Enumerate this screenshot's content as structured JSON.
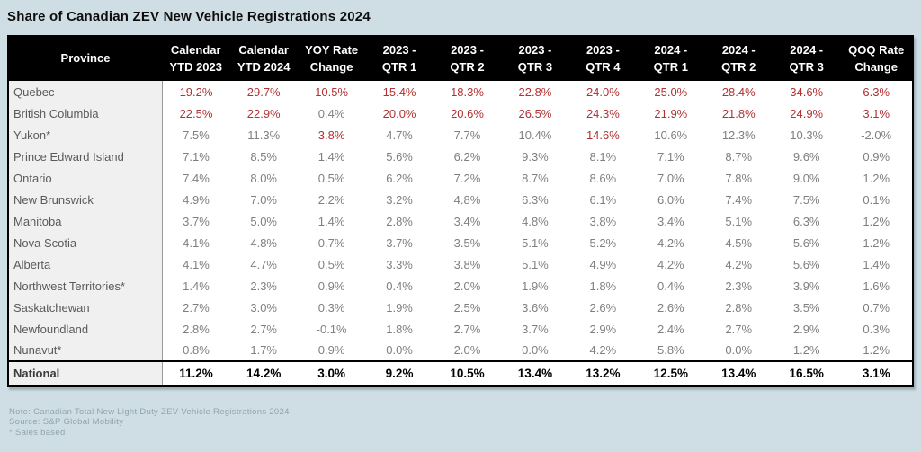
{
  "title": "Share of Canadian ZEV New Vehicle Registrations 2024",
  "colors": {
    "page_bg": "#cfdee4",
    "header_bg": "#000000",
    "header_text": "#ffffff",
    "province_col_bg": "#f0f0f0",
    "province_text": "#5a5a5a",
    "value_gray": "#7f7f7f",
    "highlight_red": "#b03232",
    "national_text": "#000000",
    "note_color": "#90a4ad",
    "border_black": "#000000"
  },
  "notes": [
    "Note: Canadian Total New Light Duty ZEV Vehicle Registrations 2024",
    "Source: S&P Global Mobility",
    "* Sales based"
  ],
  "chart_data": {
    "type": "table",
    "title": "Share of Canadian ZEV New Vehicle Registrations 2024",
    "columns": [
      "Province",
      "Calendar\nYTD 2023",
      "Calendar\nYTD 2024",
      "YOY Rate\nChange",
      "2023 -\nQTR 1",
      "2023 -\nQTR 2",
      "2023 -\nQTR 3",
      "2023 -\nQTR 4",
      "2024 -\nQTR 1",
      "2024 -\nQTR 2",
      "2024 -\nQTR 3",
      "QOQ Rate\nChange"
    ],
    "rows": [
      {
        "province": "Quebec",
        "values": [
          "19.2%",
          "29.7%",
          "10.5%",
          "15.4%",
          "18.3%",
          "22.8%",
          "24.0%",
          "25.0%",
          "28.4%",
          "34.6%",
          "6.3%"
        ],
        "red_flags": [
          1,
          1,
          1,
          1,
          1,
          1,
          1,
          1,
          1,
          1,
          1
        ]
      },
      {
        "province": "British Columbia",
        "values": [
          "22.5%",
          "22.9%",
          "0.4%",
          "20.0%",
          "20.6%",
          "26.5%",
          "24.3%",
          "21.9%",
          "21.8%",
          "24.9%",
          "3.1%"
        ],
        "red_flags": [
          1,
          1,
          0,
          1,
          1,
          1,
          1,
          1,
          1,
          1,
          1
        ]
      },
      {
        "province": "Yukon*",
        "values": [
          "7.5%",
          "11.3%",
          "3.8%",
          "4.7%",
          "7.7%",
          "10.4%",
          "14.6%",
          "10.6%",
          "12.3%",
          "10.3%",
          "-2.0%"
        ],
        "red_flags": [
          0,
          0,
          1,
          0,
          0,
          0,
          1,
          0,
          0,
          0,
          0
        ]
      },
      {
        "province": "Prince Edward Island",
        "values": [
          "7.1%",
          "8.5%",
          "1.4%",
          "5.6%",
          "6.2%",
          "9.3%",
          "8.1%",
          "7.1%",
          "8.7%",
          "9.6%",
          "0.9%"
        ],
        "red_flags": [
          0,
          0,
          0,
          0,
          0,
          0,
          0,
          0,
          0,
          0,
          0
        ]
      },
      {
        "province": "Ontario",
        "values": [
          "7.4%",
          "8.0%",
          "0.5%",
          "6.2%",
          "7.2%",
          "8.7%",
          "8.6%",
          "7.0%",
          "7.8%",
          "9.0%",
          "1.2%"
        ],
        "red_flags": [
          0,
          0,
          0,
          0,
          0,
          0,
          0,
          0,
          0,
          0,
          0
        ]
      },
      {
        "province": "New Brunswick",
        "values": [
          "4.9%",
          "7.0%",
          "2.2%",
          "3.2%",
          "4.8%",
          "6.3%",
          "6.1%",
          "6.0%",
          "7.4%",
          "7.5%",
          "0.1%"
        ],
        "red_flags": [
          0,
          0,
          0,
          0,
          0,
          0,
          0,
          0,
          0,
          0,
          0
        ]
      },
      {
        "province": "Manitoba",
        "values": [
          "3.7%",
          "5.0%",
          "1.4%",
          "2.8%",
          "3.4%",
          "4.8%",
          "3.8%",
          "3.4%",
          "5.1%",
          "6.3%",
          "1.2%"
        ],
        "red_flags": [
          0,
          0,
          0,
          0,
          0,
          0,
          0,
          0,
          0,
          0,
          0
        ]
      },
      {
        "province": "Nova Scotia",
        "values": [
          "4.1%",
          "4.8%",
          "0.7%",
          "3.7%",
          "3.5%",
          "5.1%",
          "5.2%",
          "4.2%",
          "4.5%",
          "5.6%",
          "1.2%"
        ],
        "red_flags": [
          0,
          0,
          0,
          0,
          0,
          0,
          0,
          0,
          0,
          0,
          0
        ]
      },
      {
        "province": "Alberta",
        "values": [
          "4.1%",
          "4.7%",
          "0.5%",
          "3.3%",
          "3.8%",
          "5.1%",
          "4.9%",
          "4.2%",
          "4.2%",
          "5.6%",
          "1.4%"
        ],
        "red_flags": [
          0,
          0,
          0,
          0,
          0,
          0,
          0,
          0,
          0,
          0,
          0
        ]
      },
      {
        "province": "Northwest Territories*",
        "values": [
          "1.4%",
          "2.3%",
          "0.9%",
          "0.4%",
          "2.0%",
          "1.9%",
          "1.8%",
          "0.4%",
          "2.3%",
          "3.9%",
          "1.6%"
        ],
        "red_flags": [
          0,
          0,
          0,
          0,
          0,
          0,
          0,
          0,
          0,
          0,
          0
        ]
      },
      {
        "province": "Saskatchewan",
        "values": [
          "2.7%",
          "3.0%",
          "0.3%",
          "1.9%",
          "2.5%",
          "3.6%",
          "2.6%",
          "2.6%",
          "2.8%",
          "3.5%",
          "0.7%"
        ],
        "red_flags": [
          0,
          0,
          0,
          0,
          0,
          0,
          0,
          0,
          0,
          0,
          0
        ]
      },
      {
        "province": "Newfoundland",
        "values": [
          "2.8%",
          "2.7%",
          "-0.1%",
          "1.8%",
          "2.7%",
          "3.7%",
          "2.9%",
          "2.4%",
          "2.7%",
          "2.9%",
          "0.3%"
        ],
        "red_flags": [
          0,
          0,
          0,
          0,
          0,
          0,
          0,
          0,
          0,
          0,
          0
        ]
      },
      {
        "province": "Nunavut*",
        "values": [
          "0.8%",
          "1.7%",
          "0.9%",
          "0.0%",
          "2.0%",
          "0.0%",
          "4.2%",
          "5.8%",
          "0.0%",
          "1.2%",
          "1.2%"
        ],
        "red_flags": [
          0,
          0,
          0,
          0,
          0,
          0,
          0,
          0,
          0,
          0,
          0
        ]
      }
    ],
    "national_row": {
      "province": "National",
      "values": [
        "11.2%",
        "14.2%",
        "3.0%",
        "9.2%",
        "10.5%",
        "13.4%",
        "13.2%",
        "12.5%",
        "13.4%",
        "16.5%",
        "3.1%"
      ]
    }
  }
}
